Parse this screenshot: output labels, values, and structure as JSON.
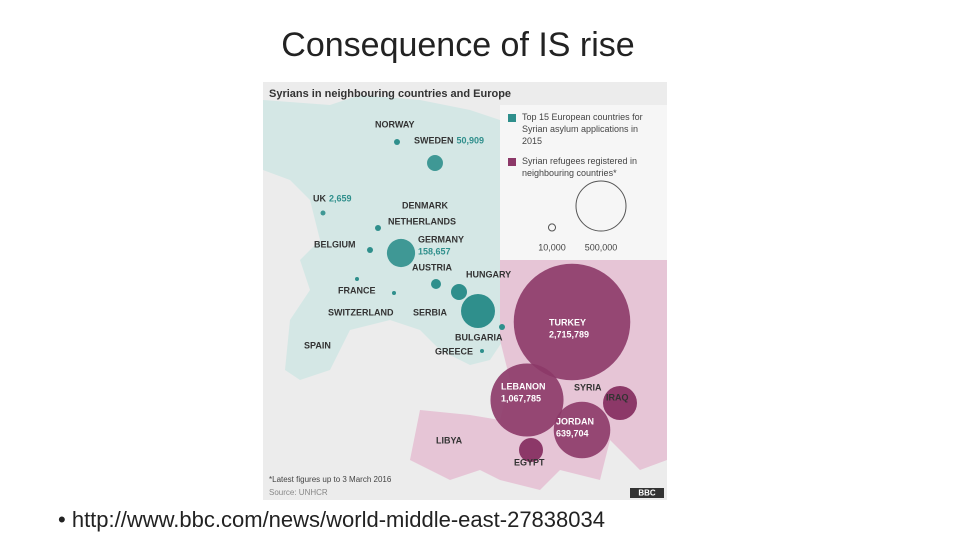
{
  "slide": {
    "title": "Consequence of IS rise",
    "bullet": "http://www.bbc.com/news/world-middle-east-27838034"
  },
  "map": {
    "title": "Syrians in neighbouring countries and Europe",
    "legend": {
      "items": [
        {
          "label": "Top 15 European countries for Syrian asylum applications in 2015",
          "color": "#2f8f8c"
        },
        {
          "label": "Syrian refugees registered in neighbouring countries*",
          "color": "#8c3868"
        }
      ],
      "sizes": [
        {
          "value": 10000,
          "label": "10,000"
        },
        {
          "value": 500000,
          "label": "500,000"
        }
      ]
    },
    "countries": [
      {
        "name": "NORWAY"
      },
      {
        "name": "SWEDEN",
        "value": {
          "value": 50909,
          "label": "50,909"
        },
        "color": "#2f8f8c"
      },
      {
        "name": "UK",
        "value": {
          "value": 2659,
          "label": "2,659"
        },
        "color": "#2f8f8c"
      },
      {
        "name": "DENMARK"
      },
      {
        "name": "NETHERLANDS"
      },
      {
        "name": "BELGIUM"
      },
      {
        "name": "GERMANY",
        "value": {
          "value": 158657,
          "label": "158,657"
        },
        "color": "#2f8f8c"
      },
      {
        "name": "AUSTRIA"
      },
      {
        "name": "HUNGARY"
      },
      {
        "name": "FRANCE"
      },
      {
        "name": "SWITZERLAND"
      },
      {
        "name": "SERBIA"
      },
      {
        "name": "SPAIN"
      },
      {
        "name": "BULGARIA"
      },
      {
        "name": "GREECE"
      },
      {
        "name": "TURKEY",
        "value": {
          "value": 2715789,
          "label": "2,715,789"
        },
        "color": "#8c3868"
      },
      {
        "name": "LEBANON",
        "value": {
          "value": 1067785,
          "label": "1,067,785"
        },
        "color": "#8c3868"
      },
      {
        "name": "SYRIA"
      },
      {
        "name": "IRAQ"
      },
      {
        "name": "JORDAN",
        "value": {
          "value": 639704,
          "label": "639,704"
        },
        "color": "#8c3868"
      },
      {
        "name": "LIBYA"
      },
      {
        "name": "EGYPT"
      }
    ],
    "footnote": "*Latest figures up to 3 March 2016",
    "source": "Source: UNHCR",
    "logo": "BBC"
  }
}
